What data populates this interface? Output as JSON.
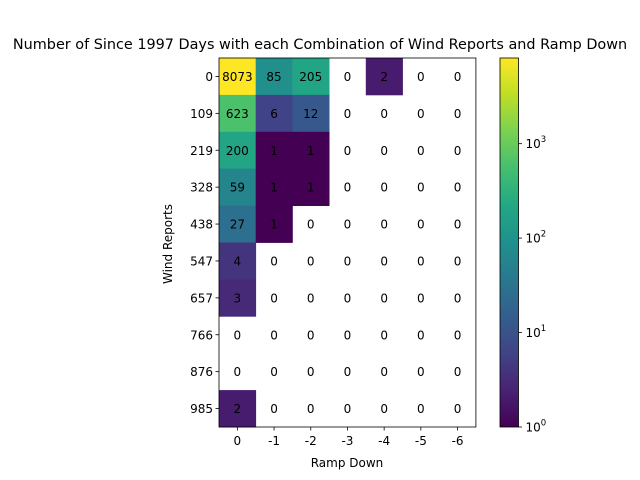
{
  "chart_data": {
    "type": "heatmap",
    "title": "Number of Since 1997 Days with each Combination of Wind Reports and Ramp Down",
    "xlabel": "Ramp Down",
    "ylabel": "Wind Reports",
    "x_ticks": [
      "0",
      "-1",
      "-2",
      "-3",
      "-4",
      "-5",
      "-6"
    ],
    "y_ticks": [
      "0",
      "109",
      "219",
      "328",
      "438",
      "547",
      "657",
      "766",
      "876",
      "985"
    ],
    "values": [
      [
        8073,
        85,
        205,
        0,
        2,
        0,
        0
      ],
      [
        623,
        6,
        12,
        0,
        0,
        0,
        0
      ],
      [
        200,
        1,
        1,
        0,
        0,
        0,
        0
      ],
      [
        59,
        1,
        1,
        0,
        0,
        0,
        0
      ],
      [
        27,
        1,
        0,
        0,
        0,
        0,
        0
      ],
      [
        4,
        0,
        0,
        0,
        0,
        0,
        0
      ],
      [
        3,
        0,
        0,
        0,
        0,
        0,
        0
      ],
      [
        0,
        0,
        0,
        0,
        0,
        0,
        0
      ],
      [
        0,
        0,
        0,
        0,
        0,
        0,
        0
      ],
      [
        2,
        0,
        0,
        0,
        0,
        0,
        0
      ]
    ],
    "colorscale": "viridis",
    "color_scale_type": "log",
    "zero_cells": "blank",
    "colorbar": {
      "range": [
        1,
        8073
      ],
      "tick_values": [
        1,
        10,
        100,
        1000
      ],
      "tick_labels": [
        {
          "base": "10",
          "exp": "0"
        },
        {
          "base": "10",
          "exp": "1"
        },
        {
          "base": "10",
          "exp": "2"
        },
        {
          "base": "10",
          "exp": "3"
        }
      ]
    }
  }
}
